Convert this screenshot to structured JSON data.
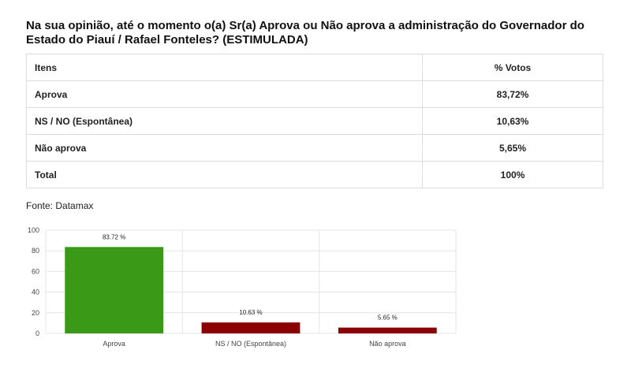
{
  "title": "Na sua opinião, até o momento o(a) Sr(a) Aprova ou Não aprova a administração do Governador do Estado do Piauí / Rafael Fonteles? (ESTIMULADA)",
  "table": {
    "headers": [
      "Itens",
      "% Votos"
    ],
    "rows": [
      {
        "item": "Aprova",
        "votes": "83,72%"
      },
      {
        "item": "NS / NO (Espontânea)",
        "votes": "10,63%"
      },
      {
        "item": "Não aprova",
        "votes": "5,65%"
      },
      {
        "item": "Total",
        "votes": "100%"
      }
    ]
  },
  "source": "Fonte: Datamax",
  "colors": {
    "approve": "#3a9a17",
    "other": "#8b0000",
    "grid": "#e6e6e6"
  },
  "chart_data": {
    "type": "bar",
    "categories": [
      "Aprova",
      "NS / NO (Espontânea)",
      "Não aprova"
    ],
    "values": [
      83.72,
      10.63,
      5.65
    ],
    "data_labels": [
      "83.72 %",
      "10.63 %",
      "5.65 %"
    ],
    "bar_colors": [
      "#3a9a17",
      "#8b0000",
      "#8b0000"
    ],
    "ylim": [
      0,
      100
    ],
    "yticks": [
      0,
      20,
      40,
      60,
      80,
      100
    ],
    "grid": true,
    "title": "",
    "xlabel": "",
    "ylabel": ""
  }
}
